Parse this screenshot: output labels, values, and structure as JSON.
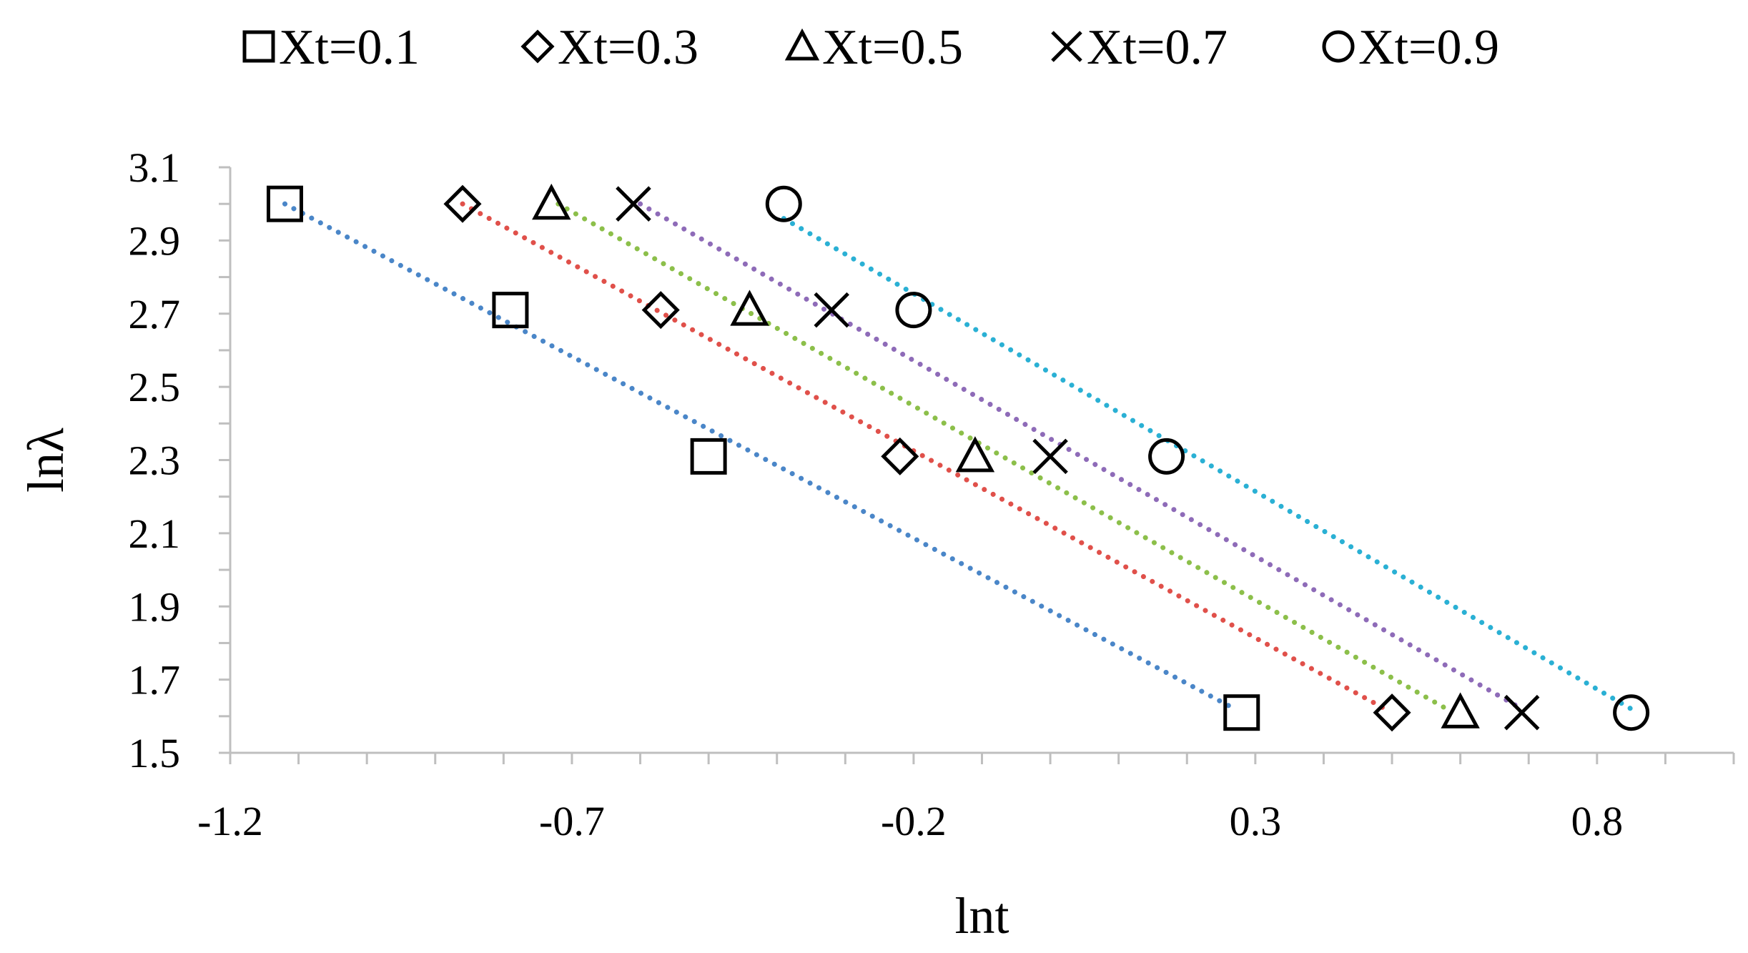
{
  "chart_data": {
    "type": "scatter",
    "xlabel": "lnt",
    "ylabel": "lnλ",
    "xlim": [
      -1.2,
      1.0
    ],
    "ylim": [
      1.5,
      3.1
    ],
    "xticks": [
      "-1.2",
      "-0.7",
      "-0.2",
      "0.3",
      "0.8"
    ],
    "yticks": [
      "1.5",
      "1.7",
      "1.9",
      "2.1",
      "2.3",
      "2.5",
      "2.7",
      "2.9",
      "3.1"
    ],
    "x_minor_step": 0.1,
    "y_minor_step": 0.1,
    "grid": false,
    "legend_position": "top",
    "series": [
      {
        "name": "Xt=0.1",
        "marker": "square",
        "trend_color": "#4a86c8",
        "points": [
          [
            -1.12,
            3.0
          ],
          [
            -0.79,
            2.71
          ],
          [
            -0.5,
            2.31
          ],
          [
            0.28,
            1.61
          ]
        ],
        "trendline": [
          [
            -1.12,
            3.0
          ],
          [
            0.27,
            1.62
          ]
        ]
      },
      {
        "name": "Xt=0.3",
        "marker": "diamond",
        "trend_color": "#e0504a",
        "points": [
          [
            -0.86,
            3.0
          ],
          [
            -0.57,
            2.71
          ],
          [
            -0.22,
            2.31
          ],
          [
            0.5,
            1.61
          ]
        ],
        "trendline": [
          [
            -0.86,
            3.0
          ],
          [
            0.49,
            1.62
          ]
        ]
      },
      {
        "name": "Xt=0.5",
        "marker": "triangle",
        "trend_color": "#8cbf4a",
        "points": [
          [
            -0.73,
            3.0
          ],
          [
            -0.44,
            2.71
          ],
          [
            -0.11,
            2.31
          ],
          [
            0.6,
            1.61
          ]
        ],
        "trendline": [
          [
            -0.72,
            3.0
          ],
          [
            0.58,
            1.62
          ]
        ]
      },
      {
        "name": "Xt=0.7",
        "marker": "x",
        "trend_color": "#8e6bb8",
        "points": [
          [
            -0.61,
            3.0
          ],
          [
            -0.32,
            2.71
          ],
          [
            0.0,
            2.31
          ],
          [
            0.69,
            1.61
          ]
        ],
        "trendline": [
          [
            -0.6,
            3.0
          ],
          [
            0.69,
            1.62
          ]
        ]
      },
      {
        "name": "Xt=0.9",
        "marker": "circle",
        "trend_color": "#2ab0d4",
        "points": [
          [
            -0.39,
            3.0
          ],
          [
            -0.2,
            2.71
          ],
          [
            0.17,
            2.31
          ],
          [
            0.85,
            1.61
          ]
        ],
        "trendline": [
          [
            -0.39,
            2.96
          ],
          [
            0.85,
            1.62
          ]
        ]
      }
    ]
  }
}
